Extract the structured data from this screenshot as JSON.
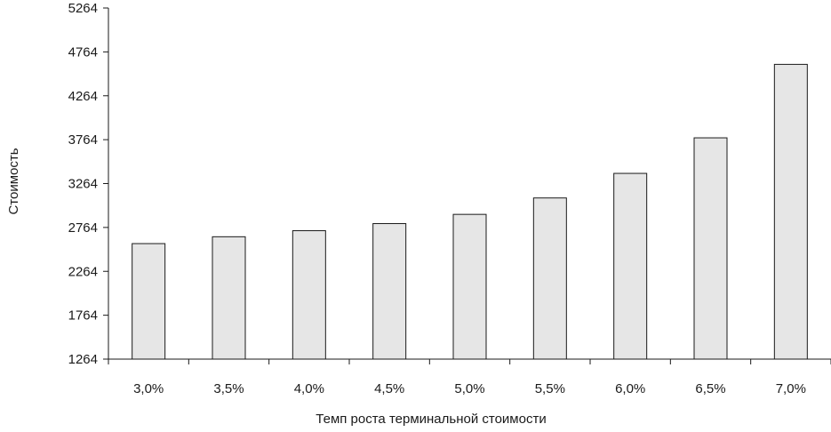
{
  "chart_data": {
    "type": "bar",
    "categories": [
      "3,0%",
      "3,5%",
      "4,0%",
      "4,5%",
      "5,0%",
      "5,5%",
      "6,0%",
      "6,5%",
      "7,0%"
    ],
    "values": [
      2580,
      2658,
      2727,
      2808,
      2913,
      3100,
      3380,
      3785,
      4622
    ],
    "yticks": [
      "1264",
      "1764",
      "2264",
      "2764",
      "3264",
      "3764",
      "4264",
      "4764",
      "5264"
    ],
    "ylim": [
      1264,
      5264
    ],
    "xlabel": "Темп роста терминальной стоимости",
    "ylabel": "Стоимость",
    "grid": false,
    "legend": "none",
    "bar_color": "#e6e6e6",
    "edge_color": "#1a1a1a"
  }
}
